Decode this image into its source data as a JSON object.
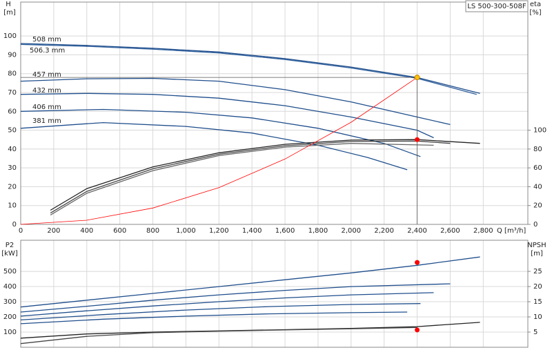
{
  "chart_data": [
    {
      "type": "line",
      "title": "LS 500-300-508F",
      "y_label": "H",
      "y_unit": "[m]",
      "y2_label": "eta",
      "y2_unit": "[%]",
      "x_label": "Q [m³/h]",
      "xlim": [
        0,
        3070
      ],
      "ylim": [
        0,
        118
      ],
      "y2lim": [
        0,
        236
      ],
      "grid": true,
      "xticks": [
        0,
        200,
        400,
        600,
        800,
        {
          "value": 1000,
          "label": "1,000"
        },
        {
          "value": 1200,
          "label": "1,200"
        },
        {
          "value": 1400,
          "label": "1,400"
        },
        {
          "value": 1600,
          "label": "1,600"
        },
        {
          "value": 1800,
          "label": "1,800"
        },
        {
          "value": 2000,
          "label": "2,000"
        },
        {
          "value": 2200,
          "label": "2,200"
        },
        {
          "value": 2400,
          "label": "2,400"
        },
        {
          "value": 2600,
          "label": "2,600"
        },
        {
          "value": 2800,
          "label": "2,800"
        }
      ],
      "yticks": [
        0,
        10,
        20,
        30,
        40,
        50,
        60,
        70,
        80,
        90,
        100
      ],
      "y2ticks": [
        0,
        20,
        40,
        60,
        80,
        100
      ],
      "series": [
        {
          "name": "508 mm",
          "color": "#1f4e8c",
          "x": [
            0,
            400,
            800,
            1200,
            1600,
            2000,
            2400,
            2780
          ],
          "values": [
            96,
            95,
            93.5,
            91.5,
            88,
            83.5,
            78,
            69.5
          ]
        },
        {
          "name": "506.3 mm",
          "color": "#2f5f9c",
          "x": [
            0,
            400,
            800,
            1200,
            1600,
            2000,
            2400,
            2760
          ],
          "values": [
            95.5,
            94.5,
            93,
            91,
            87.5,
            83,
            77.5,
            69
          ]
        },
        {
          "name": "457 mm",
          "color": "#1f4e8c",
          "x": [
            0,
            400,
            800,
            1200,
            1600,
            2000,
            2400,
            2600
          ],
          "values": [
            76,
            77.3,
            77.5,
            76,
            71.5,
            65,
            57,
            53
          ]
        },
        {
          "name": "432 mm",
          "color": "#1f4e8c",
          "x": [
            0,
            400,
            800,
            1200,
            1600,
            2000,
            2400,
            2500
          ],
          "values": [
            69,
            69.5,
            69,
            67,
            63,
            57,
            50,
            46
          ]
        },
        {
          "name": "406 mm",
          "color": "#1f4e8c",
          "x": [
            0,
            500,
            1000,
            1400,
            1800,
            2200,
            2420
          ],
          "values": [
            60,
            61,
            59.5,
            56.5,
            51,
            43,
            36
          ]
        },
        {
          "name": "381 mm",
          "color": "#1f4e8c",
          "x": [
            0,
            500,
            1000,
            1400,
            1800,
            2100,
            2340
          ],
          "values": [
            51,
            54,
            52,
            48.5,
            42,
            35.5,
            29
          ]
        },
        {
          "color": "#222222",
          "axis": "y2",
          "x": [
            180,
            400,
            800,
            1200,
            1600,
            2000,
            2400,
            2780
          ],
          "values": [
            15,
            38,
            61,
            76,
            85,
            89.5,
            90,
            86
          ]
        },
        {
          "color": "#444444",
          "axis": "y2",
          "x": [
            180,
            400,
            800,
            1200,
            1600,
            2000,
            2400,
            2600
          ],
          "values": [
            12,
            35,
            59,
            74.5,
            83.5,
            88,
            88.5,
            86
          ]
        },
        {
          "color": "#666666",
          "axis": "y2",
          "x": [
            180,
            400,
            800,
            1200,
            1600,
            2000,
            2500
          ],
          "values": [
            10,
            33,
            57,
            73,
            82,
            86,
            84
          ]
        },
        {
          "color": "#ff0000",
          "x": [
            0,
            400,
            800,
            1200,
            1600,
            2000,
            2400
          ],
          "values": [
            0,
            2.2,
            8.7,
            19.5,
            34.7,
            54.2,
            78
          ]
        },
        {
          "color": "#ffc000",
          "marker": true,
          "x": [
            2400
          ],
          "values": [
            78
          ]
        },
        {
          "color": "#ff0000",
          "marker": true,
          "axis": "y2",
          "x": [
            2400
          ],
          "values": [
            90
          ]
        }
      ]
    },
    {
      "type": "line",
      "y_label": "P2",
      "y_unit": "[kW]",
      "y2_label": "NPSH",
      "y2_unit": "[m]",
      "xlim": [
        0,
        3070
      ],
      "ylim": [
        0,
        705
      ],
      "y2lim": [
        0,
        35.25
      ],
      "grid": true,
      "yticks": [
        100,
        200,
        300,
        400,
        500
      ],
      "y2ticks": [
        5,
        10,
        15,
        20,
        25
      ],
      "series": [
        {
          "color": "#1f4e8c",
          "x": [
            0,
            400,
            800,
            1200,
            1600,
            2000,
            2400,
            2780
          ],
          "values": [
            265,
            310,
            355,
            400,
            445,
            490,
            540,
            595
          ]
        },
        {
          "color": "#1f4e8c",
          "x": [
            0,
            400,
            800,
            1200,
            1600,
            2000,
            2600
          ],
          "values": [
            232,
            270,
            310,
            345,
            375,
            400,
            418
          ]
        },
        {
          "color": "#1f4e8c",
          "x": [
            0,
            400,
            800,
            1200,
            1600,
            2000,
            2500
          ],
          "values": [
            205,
            240,
            272,
            300,
            325,
            345,
            360
          ]
        },
        {
          "color": "#1f4e8c",
          "x": [
            0,
            500,
            1000,
            1500,
            2000,
            2420
          ],
          "values": [
            180,
            215,
            245,
            268,
            282,
            288
          ]
        },
        {
          "color": "#1f4e8c",
          "x": [
            0,
            500,
            1000,
            1500,
            2000,
            2340
          ],
          "values": [
            155,
            185,
            205,
            220,
            228,
            232
          ]
        },
        {
          "color": "#222222",
          "axis": "y2",
          "x": [
            0,
            400,
            800,
            1200,
            1600,
            2000,
            2400,
            2780
          ],
          "values": [
            3,
            4.4,
            5,
            5.4,
            5.8,
            6.2,
            6.8,
            8.2
          ]
        },
        {
          "color": "#444444",
          "axis": "y2",
          "x": [
            0,
            400,
            800,
            1200,
            1600,
            2000,
            2400
          ],
          "values": [
            1.2,
            3.6,
            4.8,
            5.3,
            5.7,
            6.1,
            6.5
          ]
        },
        {
          "color": "#ff0000",
          "marker": true,
          "x": [
            2400
          ],
          "values": [
            559
          ]
        },
        {
          "color": "#ff0000",
          "marker": true,
          "axis": "y2",
          "x": [
            2400
          ],
          "values": [
            5.7
          ]
        }
      ]
    }
  ]
}
